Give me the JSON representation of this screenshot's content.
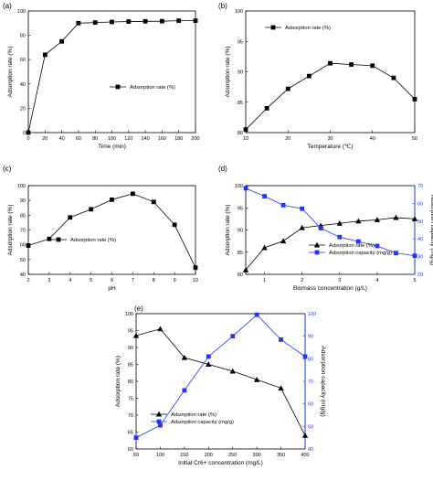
{
  "chart_data": [
    {
      "panel": "(a)",
      "type": "line",
      "xlabel": "Time (min)",
      "ylabel": "Adsorption rate (%)",
      "xlim": [
        0,
        200
      ],
      "ylim": [
        0,
        100
      ],
      "xticks": [
        0,
        20,
        40,
        60,
        80,
        100,
        120,
        140,
        160,
        180,
        200
      ],
      "yticks": [
        0,
        20,
        40,
        60,
        80,
        100
      ],
      "legend": "center-right",
      "series": [
        {
          "name": "Adsorption rate (%)",
          "marker": "square",
          "color": "#000000",
          "axis": "left",
          "x": [
            0,
            20,
            40,
            60,
            80,
            100,
            120,
            140,
            160,
            180,
            200
          ],
          "y": [
            0,
            64,
            75,
            90,
            90.5,
            91,
            91.3,
            91.5,
            91.6,
            92,
            92
          ]
        }
      ]
    },
    {
      "panel": "(b)",
      "type": "line",
      "xlabel": "Temperature (℃)",
      "ylabel": "Adsorption rate (%)",
      "xlim": [
        10,
        50
      ],
      "ylim": [
        80,
        100
      ],
      "xticks": [
        10,
        20,
        30,
        40,
        50
      ],
      "yticks": [
        80,
        85,
        90,
        95,
        100
      ],
      "legend": "top-left",
      "series": [
        {
          "name": "Adsorption rate (%)",
          "marker": "square",
          "color": "#000000",
          "axis": "left",
          "x": [
            10,
            15,
            20,
            25,
            30,
            35,
            40,
            45,
            50
          ],
          "y": [
            80.5,
            84,
            87.2,
            89.3,
            91.4,
            91.2,
            91,
            89,
            85.5
          ]
        }
      ]
    },
    {
      "panel": "(c)",
      "type": "line",
      "xlabel": "pH",
      "ylabel": "Adsorption rate (%)",
      "xlim": [
        2,
        10
      ],
      "ylim": [
        40,
        100
      ],
      "xticks": [
        2,
        3,
        4,
        5,
        6,
        7,
        8,
        9,
        10
      ],
      "yticks": [
        40,
        50,
        60,
        70,
        80,
        90,
        100
      ],
      "legend": "center-left",
      "series": [
        {
          "name": "Adsorption rate (%)",
          "marker": "square",
          "color": "#000000",
          "axis": "left",
          "x": [
            2,
            3,
            4,
            5,
            6,
            7,
            8,
            9,
            10
          ],
          "y": [
            59.5,
            64,
            78.5,
            84,
            90.5,
            94.5,
            89,
            73.5,
            44.5
          ]
        }
      ]
    },
    {
      "panel": "(d)",
      "type": "line",
      "xlabel": "Biomass concentration (g/L)",
      "ylabel": "Adsorption rate (%)",
      "y2label": "Adsorption capacity (mg/g)",
      "xlim": [
        0.5,
        5
      ],
      "ylim": [
        80,
        100
      ],
      "y2lim": [
        20,
        70
      ],
      "xticks": [
        1,
        2,
        3,
        4,
        5
      ],
      "yticks": [
        80,
        85,
        90,
        95,
        100
      ],
      "y2ticks": [
        20,
        30,
        40,
        50,
        60,
        70
      ],
      "legend": "bottom-center",
      "series": [
        {
          "name": "Adsorption rate (%)",
          "marker": "triangle",
          "color": "#000000",
          "axis": "left",
          "x": [
            0.5,
            1,
            1.5,
            2,
            2.5,
            3,
            3.5,
            4,
            4.5,
            5
          ],
          "y": [
            81,
            86,
            87.5,
            90.5,
            91,
            91.5,
            92,
            92.3,
            92.8,
            92.5
          ]
        },
        {
          "name": "Adsorption capacity (mg/g)",
          "marker": "square",
          "color": "#1f35ff",
          "axis": "right",
          "x": [
            0.5,
            1,
            1.5,
            2,
            2.5,
            3,
            3.5,
            4,
            4.5,
            5
          ],
          "y": [
            68.5,
            64,
            59,
            57,
            46,
            41,
            38.5,
            36,
            32,
            30.5
          ]
        }
      ]
    },
    {
      "panel": "(e)",
      "type": "line",
      "xlabel": "Initial Cr6+ concentration (mg/L)",
      "ylabel": "Adsorption rate (%)",
      "y2label": "Adsorption capacity (mg/g)",
      "xlim": [
        50,
        400
      ],
      "ylim": [
        60,
        100
      ],
      "y2lim": [
        40,
        100
      ],
      "xticks": [
        50,
        100,
        150,
        200,
        250,
        300,
        350,
        400
      ],
      "yticks": [
        60,
        65,
        70,
        75,
        80,
        85,
        90,
        95,
        100
      ],
      "y2ticks": [
        40,
        50,
        60,
        70,
        80,
        90,
        100
      ],
      "legend": "bottom-left",
      "series": [
        {
          "name": "Adsorption rate (%)",
          "marker": "triangle",
          "color": "#000000",
          "axis": "left",
          "x": [
            50,
            100,
            150,
            200,
            250,
            300,
            350,
            400
          ],
          "y": [
            93.5,
            95.5,
            87,
            85,
            83,
            80.5,
            78,
            64
          ]
        },
        {
          "name": "Adsorption capacity (mg/g)",
          "marker": "square",
          "color": "#1f35ff",
          "axis": "right",
          "x": [
            50,
            100,
            150,
            200,
            250,
            300,
            350,
            400
          ],
          "y": [
            45,
            50.5,
            66,
            81,
            90,
            99.5,
            88.5,
            81
          ]
        }
      ]
    }
  ]
}
